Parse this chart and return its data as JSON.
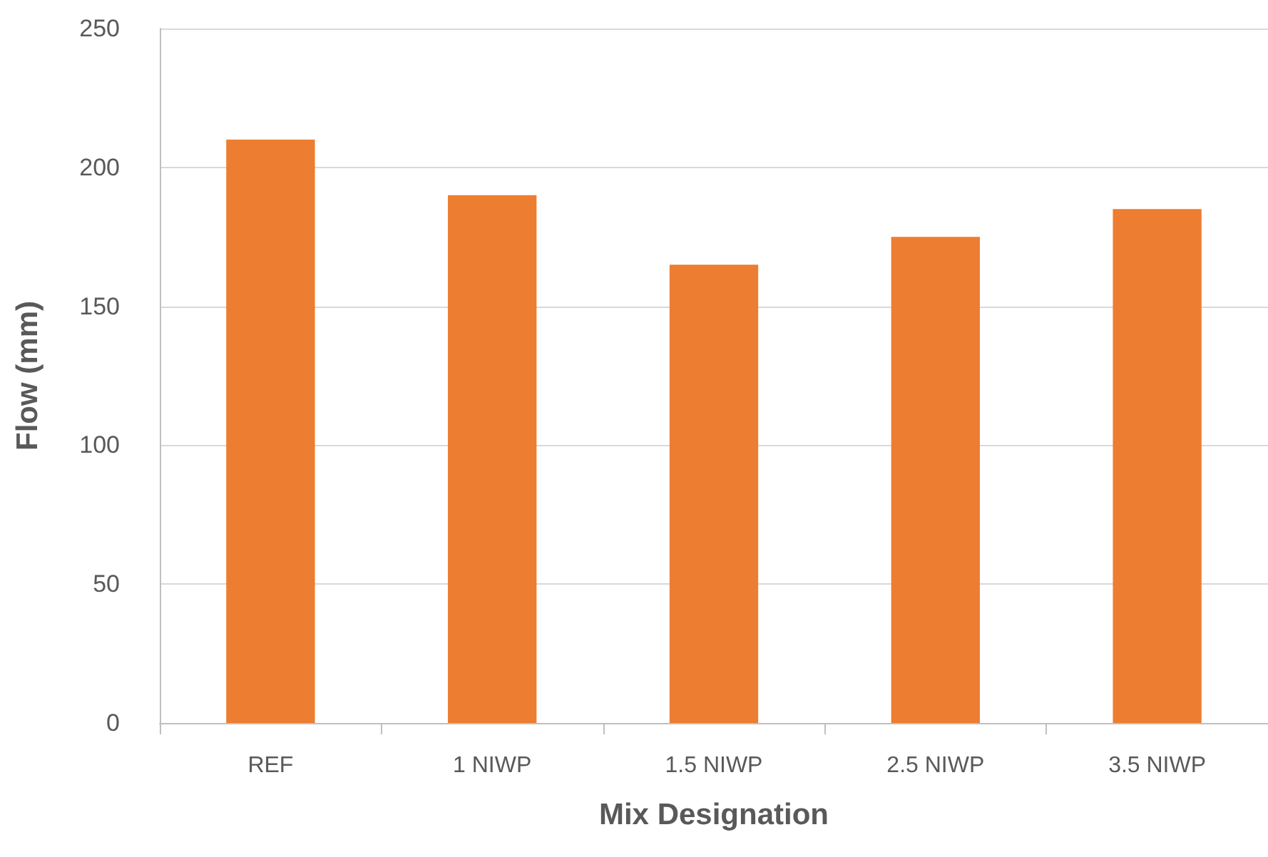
{
  "chart_data": {
    "type": "bar",
    "xlabel": "Mix Designation",
    "ylabel": "Flow (mm)",
    "categories": [
      "REF",
      "1 NIWP",
      "1.5 NIWP",
      "2.5 NIWP",
      "3.5 NIWP"
    ],
    "values": [
      210,
      190,
      165,
      175,
      185
    ],
    "color": "#ed7d31",
    "ylim": [
      0,
      250
    ],
    "yticks": [
      0,
      50,
      100,
      150,
      200,
      250
    ],
    "grid": "y"
  }
}
